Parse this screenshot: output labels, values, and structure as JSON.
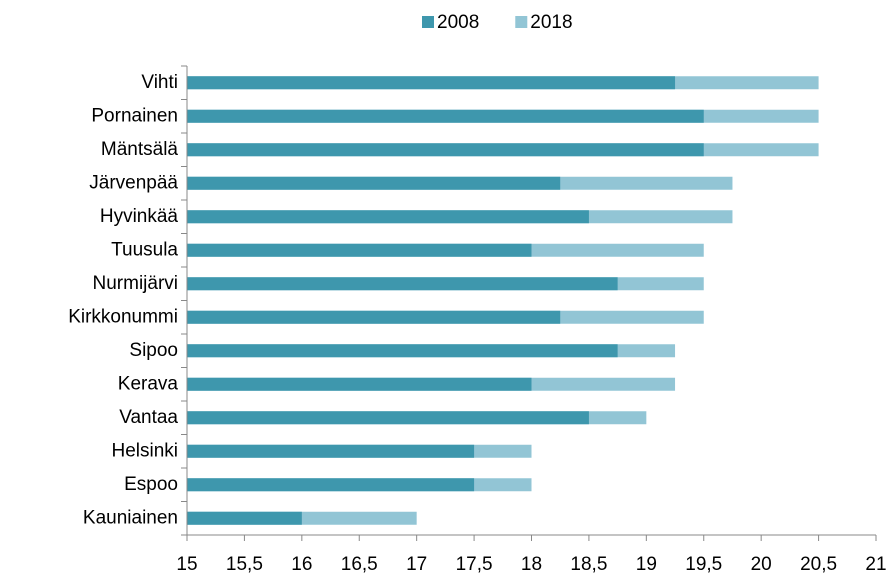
{
  "chart_data": {
    "type": "bar",
    "orientation": "horizontal",
    "overlap": true,
    "categories": [
      "Vihti",
      "Pornainen",
      "Mäntsälä",
      "Järvenpää",
      "Hyvinkää",
      "Tuusula",
      "Nurmijärvi",
      "Kirkkonummi",
      "Sipoo",
      "Kerava",
      "Vantaa",
      "Helsinki",
      "Espoo",
      "Kauniainen"
    ],
    "series": [
      {
        "name": "2008",
        "color": "#3e97ad",
        "values": [
          19.25,
          19.5,
          19.5,
          18.25,
          18.5,
          18,
          18.75,
          18.25,
          18.75,
          18,
          18.5,
          17.5,
          17.5,
          16
        ]
      },
      {
        "name": "2018",
        "color": "#92c5d5",
        "values": [
          20.5,
          20.5,
          20.5,
          19.75,
          19.75,
          19.5,
          19.5,
          19.5,
          19.25,
          19.25,
          19,
          18,
          18,
          17
        ]
      }
    ],
    "xlim": [
      15,
      21
    ],
    "xticks": [
      15,
      {
        "value": 15.5,
        "label": "15,5"
      },
      16,
      {
        "value": 16.5,
        "label": "16,5"
      },
      17,
      {
        "value": 17.5,
        "label": "17,5"
      },
      18,
      {
        "value": 18.5,
        "label": "18,5"
      },
      19,
      {
        "value": 19.5,
        "label": "19,5"
      },
      20,
      {
        "value": 20.5,
        "label": "20,5"
      },
      21
    ],
    "legend": "top",
    "grid": false
  }
}
